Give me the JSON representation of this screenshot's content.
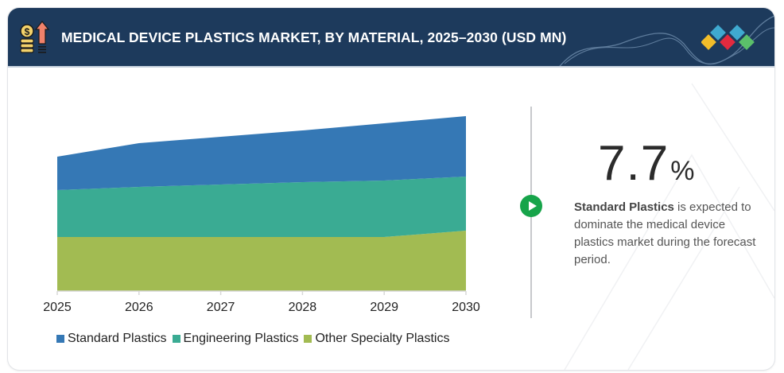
{
  "header": {
    "title": "MEDICAL DEVICE PLASTICS MARKET, BY MATERIAL, 2025–2030 (USD MN)",
    "icon": "coins-growth-arrow-icon",
    "logo": "diamond-cluster-logo"
  },
  "highlight": {
    "value": "7.7",
    "unit": "%",
    "description_bold": "Standard Plastics",
    "description_rest": " is expected to dominate the medical device plastics market during the forecast period.",
    "icon": "play-icon"
  },
  "colors": {
    "header_bg": "#1d3a5c",
    "standard": "#3578b5",
    "engineering": "#3aab93",
    "other": "#a2bb52",
    "accent_green": "#17a44a"
  },
  "chart_data": {
    "type": "area",
    "stacked": true,
    "title": "MEDICAL DEVICE PLASTICS MARKET, BY MATERIAL, 2025–2030 (USD MN)",
    "xlabel": "",
    "ylabel": "",
    "y_axis_visible": false,
    "grid": false,
    "legend_position": "bottom",
    "categories": [
      "2025",
      "2026",
      "2027",
      "2028",
      "2029",
      "2030"
    ],
    "series": [
      {
        "name": "Standard Plastics",
        "color": "#3578b5",
        "values": [
          42,
          55,
          60,
          65,
          72,
          76
        ]
      },
      {
        "name": "Engineering Plastics",
        "color": "#3aab93",
        "values": [
          59,
          63,
          66,
          69,
          71,
          68
        ]
      },
      {
        "name": "Other Specialty Plastics",
        "color": "#a2bb52",
        "values": [
          68,
          68,
          68,
          68,
          68,
          76
        ]
      }
    ],
    "ylim": [
      0,
      230
    ],
    "note": "Values are relative (no y-axis scale shown)"
  }
}
